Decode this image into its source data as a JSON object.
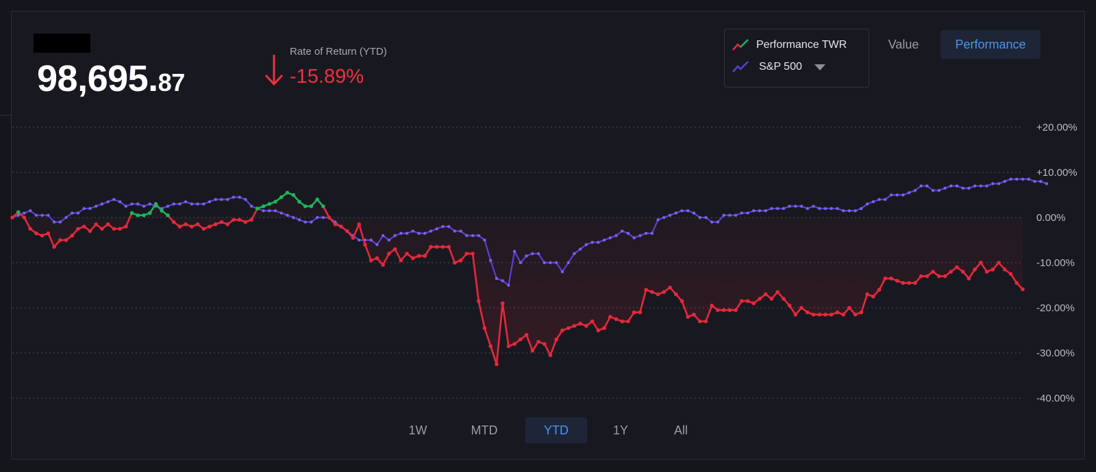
{
  "summary": {
    "value_whole": "98,695.",
    "value_cents": "87",
    "return_label": "Rate of Return (YTD)",
    "return_value": "-15.89%"
  },
  "legend": {
    "items": [
      {
        "label": "Performance TWR",
        "colors": [
          "#e8283c",
          "#1fb45a"
        ]
      },
      {
        "label": "S&P 500",
        "colors": [
          "#5a3fd6"
        ]
      }
    ]
  },
  "view_toggle": {
    "value_label": "Value",
    "performance_label": "Performance",
    "active": "Performance"
  },
  "ranges": {
    "items": [
      "1W",
      "MTD",
      "YTD",
      "1Y",
      "All"
    ],
    "active": "YTD"
  },
  "colors": {
    "positive": "#1fb45a",
    "negative": "#e8283c",
    "benchmark": "#5a3fd6",
    "accent": "#4e93f4",
    "grid": "#4a4c56"
  },
  "chart_data": {
    "type": "line",
    "ylim": [
      -40,
      20
    ],
    "yticks": [
      "+20.00%",
      "+10.00%",
      "0.00%",
      "-10.00%",
      "-20.00%",
      "-30.00%",
      "-40.00%"
    ],
    "ytick_values": [
      20,
      10,
      0,
      -10,
      -20,
      -30,
      -40
    ],
    "grid": true,
    "legend_position": "top-right",
    "series": [
      {
        "name": "Performance TWR",
        "values": [
          0,
          1.2,
          0,
          -2.5,
          -3.5,
          -4,
          -3.5,
          -6.5,
          -5,
          -5,
          -4,
          -2.5,
          -2,
          -3,
          -1.5,
          -2.5,
          -1.5,
          -2.5,
          -2.5,
          -2,
          1,
          0.5,
          0.5,
          1,
          3,
          1.5,
          0.5,
          -1,
          -2,
          -1.5,
          -2,
          -1.5,
          -2.5,
          -2,
          -1.5,
          -1,
          -1.5,
          -0.5,
          -0.5,
          -1,
          -0.5,
          2,
          2.5,
          3,
          3.5,
          4.5,
          5.5,
          5,
          3.5,
          2.5,
          2.5,
          4,
          2.5,
          0,
          -1.5,
          -2,
          -3,
          -4.5,
          -1.5,
          -6,
          -9.5,
          -9,
          -10.5,
          -8,
          -7,
          -9.5,
          -8,
          -9,
          -8.5,
          -8.5,
          -6.5,
          -6.5,
          -6.5,
          -6.5,
          -10,
          -9.5,
          -8,
          -8,
          -18.5,
          -24.5,
          -28.5,
          -32.5,
          -19,
          -28.5,
          -28,
          -27,
          -26,
          -29.5,
          -27.5,
          -28,
          -30.5,
          -27,
          -25,
          -24.5,
          -24,
          -23.5,
          -24,
          -23,
          -25,
          -24.5,
          -22,
          -22.5,
          -23,
          -23,
          -21,
          -21,
          -16,
          -16.5,
          -17,
          -16.5,
          -15.5,
          -17,
          -18.5,
          -22,
          -21.5,
          -23,
          -23,
          -19.5,
          -20.5,
          -20.5,
          -20.5,
          -20.5,
          -18.5,
          -18.5,
          -19,
          -18,
          -17,
          -18,
          -16.5,
          -18,
          -19.5,
          -21.5,
          -20,
          -21,
          -21.5,
          -21.5,
          -21.5,
          -21.5,
          -21,
          -21.5,
          -20,
          -21.5,
          -21,
          -17,
          -17.5,
          -16,
          -13.5,
          -13.5,
          -14,
          -14.5,
          -14.5,
          -14.5,
          -13,
          -13,
          -12,
          -13,
          -13,
          -12,
          -11,
          -12,
          -13.5,
          -11.5,
          -10,
          -12,
          -11.5,
          -10,
          -11.5,
          -12.5,
          -14.5,
          -15.89
        ]
      },
      {
        "name": "S&P 500",
        "values": [
          0,
          0.5,
          1,
          1.5,
          0.5,
          0.5,
          0.5,
          -1,
          -1,
          0,
          1,
          1,
          2,
          2,
          2.5,
          3,
          3.5,
          4,
          3.5,
          2.5,
          3,
          3,
          2.5,
          3,
          2.5,
          2,
          2.5,
          3,
          3,
          3.5,
          3,
          3,
          3,
          3.5,
          4,
          4,
          4,
          4.5,
          4.5,
          4,
          2.5,
          2,
          1.5,
          1.5,
          1.5,
          1,
          0.5,
          0,
          -0.5,
          -1,
          -1,
          0,
          0,
          0,
          -1,
          -2,
          -3,
          -4,
          -5,
          -5,
          -5,
          -6,
          -4,
          -5,
          -4,
          -3.5,
          -3.5,
          -3,
          -3.5,
          -3.5,
          -3,
          -2.5,
          -2,
          -2,
          -3,
          -3,
          -4,
          -4,
          -4,
          -5,
          -9.5,
          -13.5,
          -14,
          -15,
          -7.5,
          -10,
          -8.5,
          -8,
          -8,
          -10,
          -10,
          -10,
          -12,
          -10,
          -8,
          -7,
          -6,
          -5.5,
          -5.5,
          -5,
          -4.5,
          -4,
          -3,
          -3.5,
          -4.5,
          -4,
          -3.5,
          -3.5,
          -0.5,
          0,
          0.5,
          1,
          1.5,
          1.5,
          1,
          0,
          0,
          -1,
          -1,
          0.5,
          0.5,
          0.5,
          1,
          1,
          1.5,
          1.5,
          1.5,
          2,
          2,
          2,
          2.5,
          2.5,
          2.5,
          2,
          2.5,
          2,
          2,
          2,
          2,
          1.5,
          1.5,
          1.5,
          2,
          3,
          3.5,
          4,
          4,
          5,
          5,
          5,
          5.5,
          6,
          7,
          7,
          6,
          6,
          6.5,
          7,
          7,
          6.5,
          6.5,
          7,
          7,
          7,
          7.5,
          7.5,
          8,
          8.5,
          8.5,
          8.5,
          8.5,
          8,
          8,
          7.5
        ]
      }
    ]
  }
}
